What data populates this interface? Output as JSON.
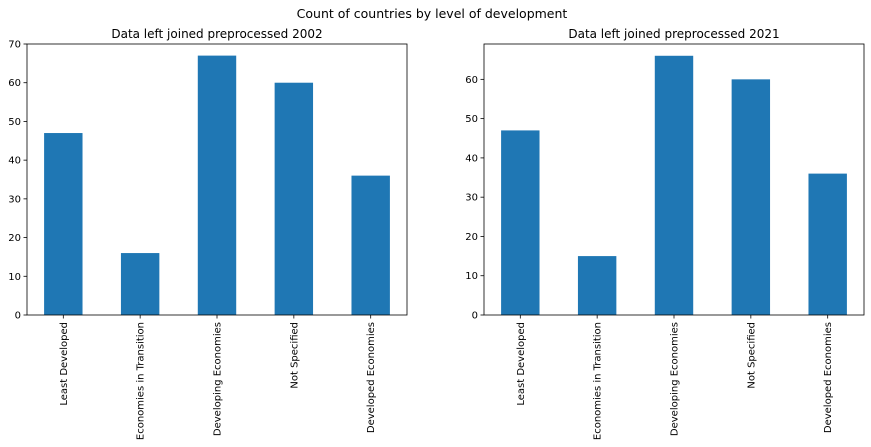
{
  "figure": {
    "title": "Count of countries by level of development"
  },
  "chart_data": [
    {
      "type": "bar",
      "title": "Data left joined preprocessed 2002",
      "categories": [
        "Least Developed",
        "Economies in Transition",
        "Developing Economies",
        "Not Specified",
        "Developed Economies"
      ],
      "values": [
        47,
        16,
        67,
        60,
        36
      ],
      "xlabel": "",
      "ylabel": "",
      "ylim": [
        0,
        70
      ],
      "yticks": [
        0,
        10,
        20,
        30,
        40,
        50,
        60,
        70
      ],
      "color": "#1f77b4",
      "grid": false,
      "legend": "none"
    },
    {
      "type": "bar",
      "title": "Data left joined preprocessed 2021",
      "categories": [
        "Least Developed",
        "Economies in Transition",
        "Developing Economies",
        "Not Specified",
        "Developed Economies"
      ],
      "values": [
        47,
        15,
        66,
        60,
        36
      ],
      "xlabel": "",
      "ylabel": "",
      "ylim": [
        0,
        69
      ],
      "yticks": [
        0,
        10,
        20,
        30,
        40,
        50,
        60
      ],
      "color": "#1f77b4",
      "grid": false,
      "legend": "none"
    }
  ]
}
